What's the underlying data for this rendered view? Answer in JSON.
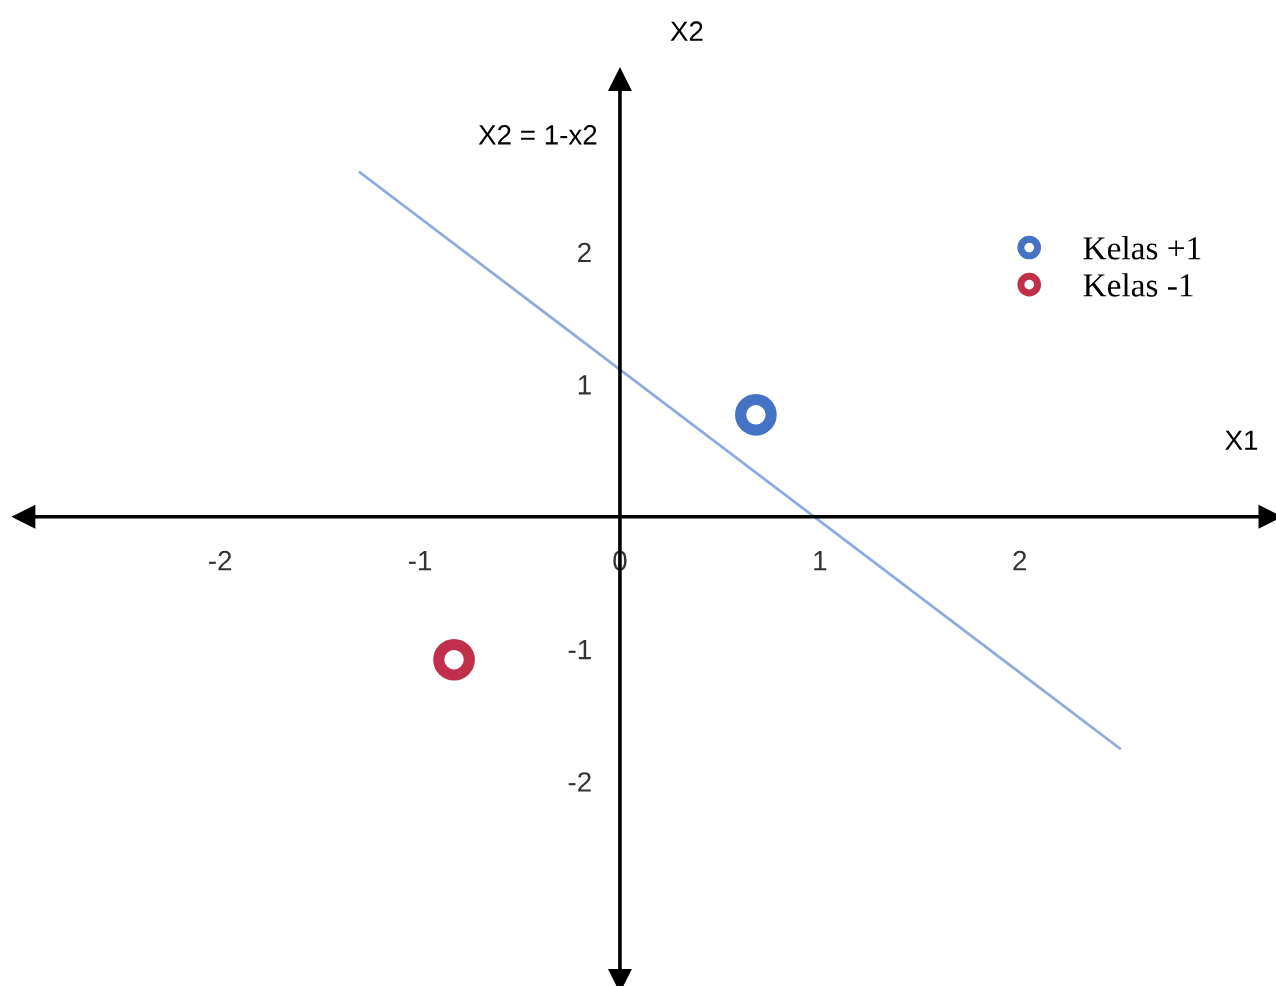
{
  "chart_data": {
    "type": "scatter",
    "xlabel": "X1",
    "ylabel": "X2",
    "annotations": [
      "X2 = 1-x2"
    ],
    "xlim": [
      -2.98,
      3.25
    ],
    "ylim": [
      -3.5,
      3.3
    ],
    "xticks": [
      -2,
      -1,
      0,
      1,
      2
    ],
    "yticks": [
      -2,
      -1,
      1,
      2
    ],
    "series": [
      {
        "type": "line",
        "marker": "none",
        "color": "#8faadc",
        "x": [
          -1.3,
          2.5
        ],
        "values": [
          2.6,
          -1.75
        ]
      },
      {
        "name": "Kelas +1",
        "marker": "circle",
        "color": "#4472c4",
        "x": [
          0.68
        ],
        "values": [
          0.77
        ]
      },
      {
        "name": "Kelas -1",
        "marker": "circle",
        "color": "#c0304a",
        "x": [
          -0.83
        ],
        "values": [
          -1.08
        ]
      }
    ],
    "grid": false,
    "legend": "top right"
  }
}
